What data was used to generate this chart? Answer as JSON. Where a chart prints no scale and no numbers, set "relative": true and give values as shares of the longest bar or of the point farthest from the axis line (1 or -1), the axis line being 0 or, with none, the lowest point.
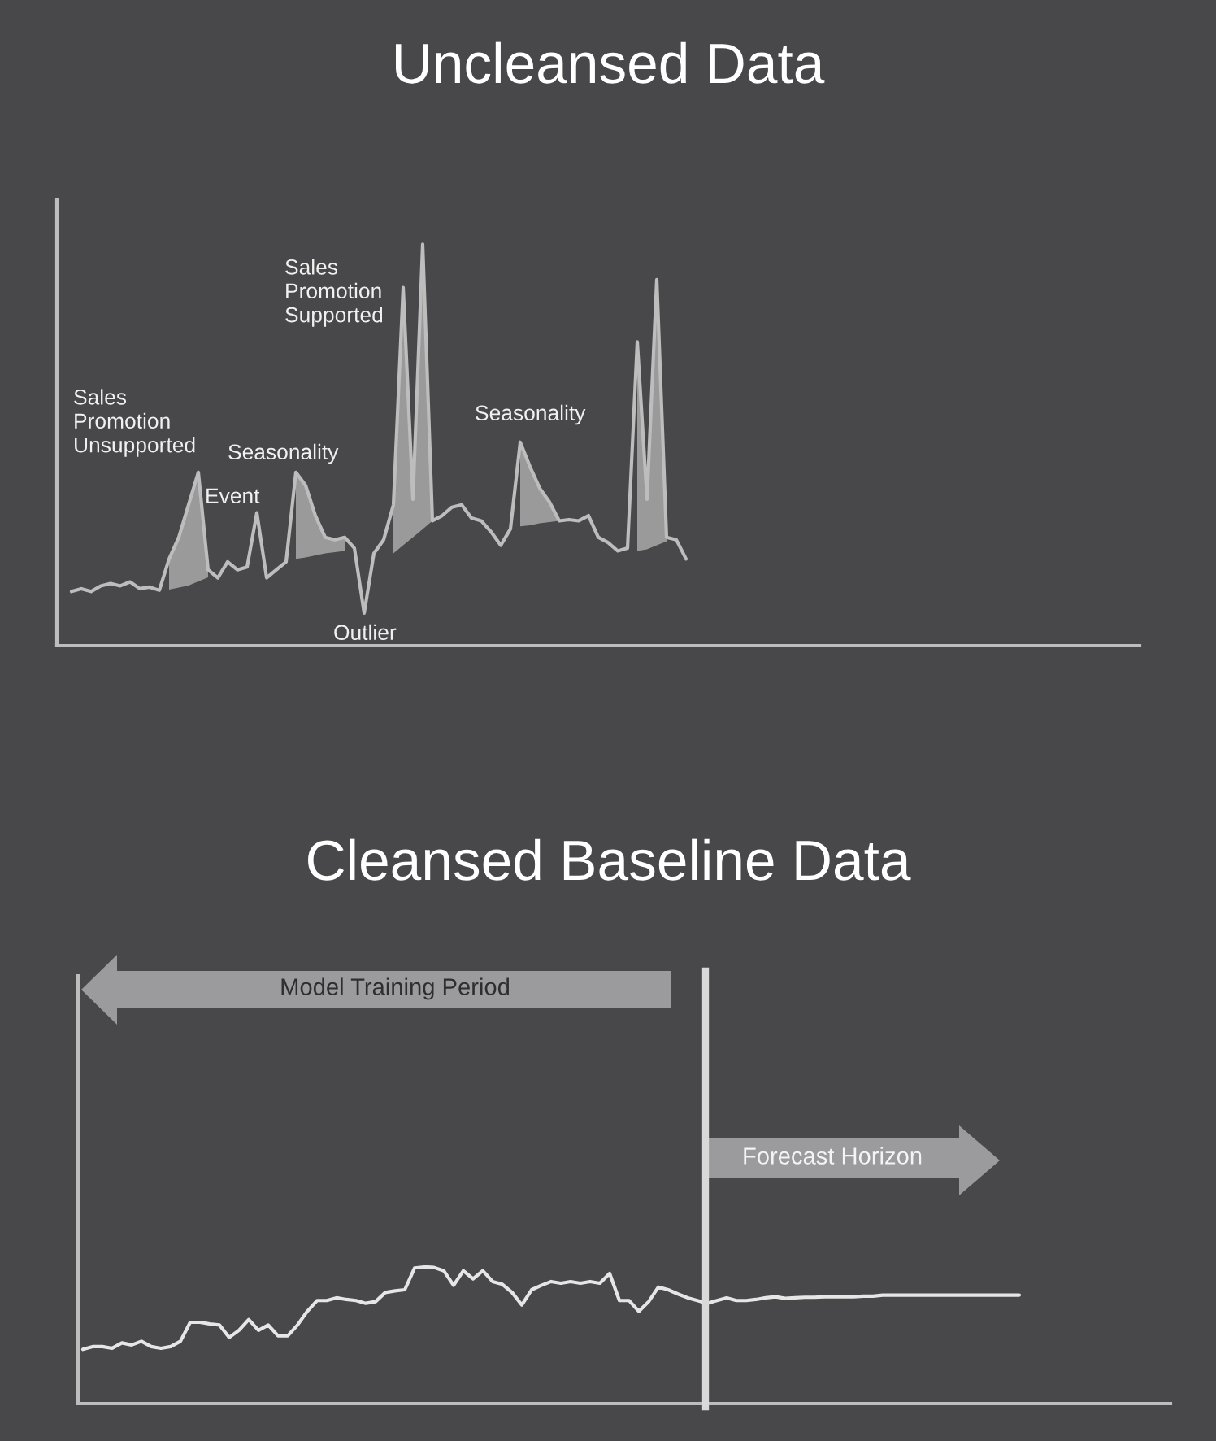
{
  "chart_data": [
    {
      "type": "line",
      "title": "Uncleansed Data",
      "relative": true,
      "categories": [
        null,
        null,
        null,
        null,
        null,
        null,
        null,
        null,
        null,
        null,
        null,
        null,
        null,
        null,
        null,
        null,
        null,
        null,
        null,
        null,
        null,
        null,
        null,
        null,
        null,
        null,
        null,
        null,
        null,
        null,
        null,
        null,
        null,
        null,
        null,
        null,
        null,
        null,
        null,
        null,
        null,
        null,
        null,
        null,
        null,
        null,
        null,
        null,
        null,
        null,
        null,
        null,
        null,
        null,
        null,
        null,
        null,
        null,
        null,
        null,
        null,
        null,
        null,
        null,
        null,
        null,
        null,
        null,
        null,
        null,
        null,
        null,
        null,
        null,
        null,
        null,
        null,
        null,
        null,
        null,
        null,
        null,
        null,
        null,
        null,
        null,
        null,
        null,
        null,
        null,
        null,
        null,
        null,
        null,
        null,
        null,
        null,
        null,
        null,
        null,
        null,
        null,
        null,
        null,
        null,
        null,
        null,
        null,
        null,
        null,
        null
      ],
      "series": [
        {
          "color": "#bdbdbd",
          "values": [
            null,
            0.135,
            0.142,
            0.135,
            0.149,
            0.155,
            0.149,
            0.159,
            0.142,
            0.146,
            0.138,
            0.216,
            0.27,
            0.351,
            0.432,
            0.189,
            0.169,
            0.209,
            0.189,
            0.196,
            0.331,
            0.169,
            0.189,
            0.209,
            0.432,
            0.399,
            0.324,
            0.27,
            0.264,
            0.27,
            0.243,
            0.081,
            0.23,
            0.264,
            0.351,
            0.892,
            0.365,
            1.0,
            0.311,
            0.324,
            0.345,
            0.351,
            0.318,
            0.311,
            0.284,
            0.25,
            0.291,
            0.507,
            0.446,
            0.392,
            0.358,
            0.311,
            0.314,
            0.311,
            0.324,
            0.27,
            0.257,
            0.236,
            0.243,
            0.757,
            0.365,
            0.912,
            0.27,
            0.264,
            0.216,
            null,
            null,
            null,
            null,
            null,
            null,
            null,
            null,
            null,
            null,
            null,
            null,
            null,
            null,
            null,
            null,
            null,
            null,
            null,
            null,
            null,
            null,
            null,
            null,
            null,
            null,
            null,
            null,
            null,
            null,
            null,
            null,
            null,
            null,
            null,
            null,
            null,
            null,
            null,
            null,
            null,
            null,
            null,
            null,
            null,
            null
          ],
          "lower": [
            null,
            null,
            null,
            null,
            null,
            null,
            null,
            null,
            null,
            null,
            null,
            0.14,
            0.145,
            0.15,
            0.16,
            0.17,
            null,
            null,
            null,
            null,
            null,
            null,
            null,
            null,
            0.216,
            0.22,
            0.225,
            0.23,
            0.233,
            0.236,
            null,
            null,
            null,
            null,
            0.23,
            0.25,
            0.27,
            0.29,
            0.311,
            null,
            null,
            null,
            null,
            null,
            null,
            null,
            null,
            0.297,
            0.3,
            0.305,
            0.308,
            0.311,
            null,
            null,
            null,
            null,
            null,
            null,
            null,
            0.236,
            0.24,
            0.25,
            0.26,
            null,
            null,
            null,
            null,
            null,
            null,
            null,
            null,
            null,
            null,
            null,
            null,
            null,
            null,
            null,
            null,
            null,
            null,
            null,
            null,
            null,
            null,
            null,
            null,
            null,
            null,
            null,
            null,
            null,
            null,
            null,
            null,
            null,
            null,
            null,
            null,
            null,
            null,
            null,
            null,
            null,
            null,
            null,
            null,
            null,
            null,
            null,
            null
          ],
          "upper": [
            null,
            null,
            null,
            null,
            null,
            null,
            null,
            null,
            null,
            null,
            null,
            0.216,
            0.27,
            0.351,
            0.432,
            0.189,
            null,
            null,
            null,
            null,
            null,
            null,
            null,
            null,
            0.432,
            0.399,
            0.324,
            0.27,
            0.264,
            0.27,
            null,
            null,
            null,
            null,
            0.351,
            0.892,
            0.365,
            1.0,
            0.311,
            null,
            null,
            null,
            null,
            null,
            null,
            null,
            null,
            0.507,
            0.446,
            0.392,
            0.358,
            0.311,
            null,
            null,
            null,
            null,
            null,
            null,
            null,
            0.757,
            0.365,
            0.912,
            0.27,
            null,
            null,
            null,
            null,
            null,
            null,
            null,
            null,
            null,
            null,
            null,
            null,
            null,
            null,
            null,
            null,
            null,
            null,
            null,
            null,
            null,
            null,
            null,
            null,
            null,
            null,
            null,
            null,
            null,
            null,
            null,
            null,
            null,
            null,
            null,
            null,
            null,
            null,
            null,
            null,
            null,
            null,
            null,
            null,
            null,
            null,
            null,
            null
          ]
        }
      ],
      "annotations": [
        "Sales\nPromotion\nUnsupported",
        "Event",
        "Seasonality",
        "Sales\nPromotion\nSupported",
        "Outlier",
        "Seasonality"
      ]
    },
    {
      "type": "line",
      "title": "Cleansed Baseline Data",
      "relative": true,
      "categories": [
        null,
        null,
        null,
        null,
        null,
        null,
        null,
        null,
        null,
        null,
        null,
        null,
        null,
        null,
        null,
        null,
        null,
        null,
        null,
        null,
        null,
        null,
        null,
        null,
        null,
        null,
        null,
        null,
        null,
        null,
        null,
        null,
        null,
        null,
        null,
        null,
        null,
        null,
        null,
        null,
        null,
        null,
        null,
        null,
        null,
        null,
        null,
        null,
        null,
        null,
        null,
        null,
        null,
        null,
        null,
        null,
        null,
        null,
        null,
        null,
        null,
        null,
        null,
        null,
        null,
        null,
        null,
        null,
        null,
        null,
        null,
        null,
        null,
        null,
        null,
        null,
        null,
        null,
        null,
        null,
        null,
        null,
        null,
        null,
        null,
        null,
        null,
        null,
        null,
        null,
        null,
        null,
        null,
        null,
        null,
        null,
        null,
        null,
        null,
        null,
        null,
        null,
        null,
        null,
        null,
        null,
        null,
        null,
        null,
        null,
        null,
        null
      ],
      "series": [
        {
          "color": "#e6e6e6",
          "values": [
            0.397,
            0.417,
            0.417,
            0.405,
            0.444,
            0.429,
            0.456,
            0.417,
            0.405,
            0.417,
            0.456,
            0.595,
            0.595,
            0.583,
            0.575,
            0.484,
            0.536,
            0.615,
            0.536,
            0.575,
            0.496,
            0.496,
            0.575,
            0.675,
            0.754,
            0.754,
            0.774,
            0.762,
            0.754,
            0.734,
            0.746,
            0.813,
            0.825,
            0.833,
            0.992,
            1.0,
            0.996,
            0.972,
            0.865,
            0.972,
            0.913,
            0.972,
            0.893,
            0.873,
            0.813,
            0.722,
            0.833,
            0.865,
            0.893,
            0.881,
            0.893,
            0.881,
            0.893,
            0.881,
            0.952,
            0.754,
            0.754,
            0.675,
            0.746,
            0.853,
            0.833,
            0.802,
            0.774,
            0.754,
            0.734,
            0.754,
            0.774,
            0.754,
            0.754,
            0.762,
            0.774,
            0.782,
            0.77,
            0.774,
            0.778,
            0.778,
            0.782,
            0.782,
            0.782,
            0.782,
            0.786,
            0.786,
            0.794,
            0.794,
            0.794,
            0.794,
            0.794,
            0.794,
            0.794,
            0.794,
            0.794,
            0.794,
            0.794,
            0.794,
            0.794,
            0.794,
            0.794,
            null,
            null,
            null,
            null,
            null,
            null,
            null,
            null,
            null,
            null,
            null,
            null,
            null,
            null,
            null
          ]
        }
      ],
      "annotations": [
        "Model Training Period",
        "Forecast Horizon"
      ]
    }
  ]
}
